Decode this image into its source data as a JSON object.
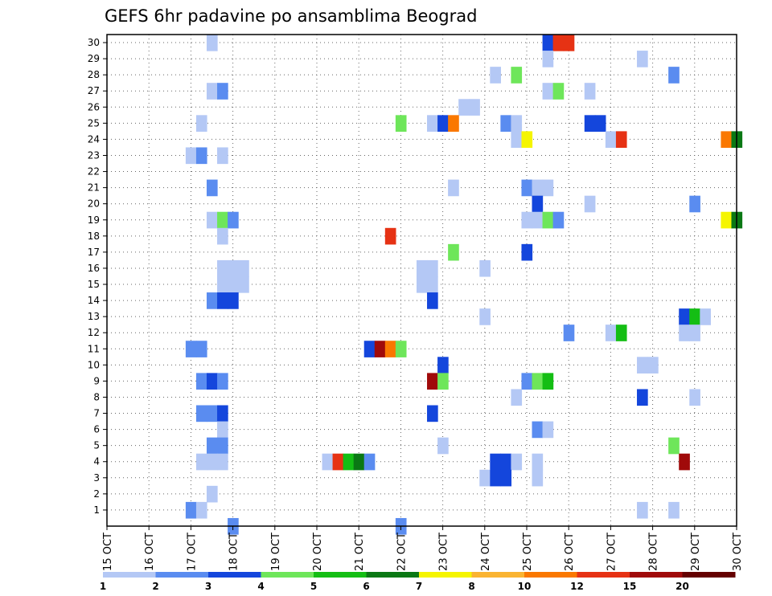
{
  "chart_data": {
    "type": "heatmap",
    "title": "GEFS 6hr padavine po ansamblima Beograd",
    "x_tick_labels": [
      "15 OCT",
      "16 OCT",
      "17 OCT",
      "18 OCT",
      "19 OCT",
      "20 OCT",
      "21 OCT",
      "22 OCT",
      "23 OCT",
      "24 OCT",
      "25 OCT",
      "26 OCT",
      "27 OCT",
      "28 OCT",
      "29 OCT",
      "30 OCT"
    ],
    "y_tick_labels": [
      "1",
      "2",
      "3",
      "4",
      "5",
      "6",
      "7",
      "8",
      "9",
      "10",
      "11",
      "12",
      "13",
      "14",
      "15",
      "16",
      "17",
      "18",
      "19",
      "20",
      "21",
      "22",
      "23",
      "24",
      "25",
      "26",
      "27",
      "28",
      "29",
      "30"
    ],
    "x_range": [
      0,
      60
    ],
    "y_range": [
      0,
      30
    ],
    "legend": {
      "labels": [
        "1",
        "2",
        "3",
        "4",
        "5",
        "6",
        "7",
        "8",
        "10",
        "12",
        "15",
        "20"
      ],
      "colors": [
        "#b4c8f5",
        "#5a8cf0",
        "#1446dc",
        "#6ee65a",
        "#14be14",
        "#0a7814",
        "#f5f500",
        "#fab432",
        "#fa7800",
        "#e63214",
        "#a00a0a",
        "#640000"
      ]
    },
    "cells": [
      [
        10,
        30,
        0
      ],
      [
        42,
        30,
        2
      ],
      [
        43,
        30,
        9
      ],
      [
        44,
        30,
        9
      ],
      [
        42,
        29,
        0
      ],
      [
        51,
        29,
        0
      ],
      [
        37,
        28,
        0
      ],
      [
        39,
        28,
        3
      ],
      [
        54,
        28,
        1
      ],
      [
        10,
        27,
        0
      ],
      [
        11,
        27,
        1
      ],
      [
        42,
        27,
        0
      ],
      [
        43,
        27,
        3
      ],
      [
        46,
        27,
        0
      ],
      [
        34,
        26,
        0
      ],
      [
        35,
        26,
        0
      ],
      [
        9,
        25,
        0
      ],
      [
        28,
        25,
        3
      ],
      [
        31,
        25,
        0
      ],
      [
        32,
        25,
        2
      ],
      [
        33,
        25,
        8
      ],
      [
        38,
        25,
        1
      ],
      [
        39,
        25,
        0
      ],
      [
        46,
        25,
        2
      ],
      [
        47,
        25,
        2
      ],
      [
        39,
        24,
        0
      ],
      [
        40,
        24,
        6
      ],
      [
        48,
        24,
        0
      ],
      [
        49,
        24,
        9
      ],
      [
        59,
        24,
        8
      ],
      [
        60,
        24,
        5
      ],
      [
        8,
        23,
        0
      ],
      [
        9,
        23,
        1
      ],
      [
        11,
        23,
        0
      ],
      [
        10,
        21,
        1
      ],
      [
        33,
        21,
        0
      ],
      [
        40,
        21,
        1
      ],
      [
        41,
        21,
        0
      ],
      [
        42,
        21,
        0
      ],
      [
        41,
        20,
        2
      ],
      [
        46,
        20,
        0
      ],
      [
        56,
        20,
        1
      ],
      [
        10,
        19,
        0
      ],
      [
        11,
        19,
        3
      ],
      [
        12,
        19,
        1
      ],
      [
        40,
        19,
        0
      ],
      [
        41,
        19,
        0
      ],
      [
        42,
        19,
        3
      ],
      [
        43,
        19,
        1
      ],
      [
        59,
        19,
        6
      ],
      [
        60,
        19,
        5
      ],
      [
        11,
        18,
        0
      ],
      [
        27,
        18,
        9
      ],
      [
        33,
        17,
        3
      ],
      [
        40,
        17,
        2
      ],
      [
        11,
        16,
        0
      ],
      [
        12,
        16,
        0
      ],
      [
        13,
        16,
        0
      ],
      [
        30,
        16,
        0
      ],
      [
        31,
        16,
        0
      ],
      [
        36,
        16,
        0
      ],
      [
        11,
        15,
        0
      ],
      [
        12,
        15,
        0
      ],
      [
        13,
        15,
        0
      ],
      [
        30,
        15,
        0
      ],
      [
        31,
        15,
        0
      ],
      [
        10,
        14,
        1
      ],
      [
        11,
        14,
        2
      ],
      [
        12,
        14,
        2
      ],
      [
        31,
        14,
        2
      ],
      [
        36,
        13,
        0
      ],
      [
        55,
        13,
        2
      ],
      [
        56,
        13,
        4
      ],
      [
        57,
        13,
        0
      ],
      [
        44,
        12,
        1
      ],
      [
        48,
        12,
        0
      ],
      [
        49,
        12,
        4
      ],
      [
        55,
        12,
        0
      ],
      [
        56,
        12,
        0
      ],
      [
        8,
        11,
        1
      ],
      [
        9,
        11,
        1
      ],
      [
        25,
        11,
        2
      ],
      [
        26,
        11,
        10
      ],
      [
        27,
        11,
        8
      ],
      [
        28,
        11,
        3
      ],
      [
        32,
        10,
        2
      ],
      [
        51,
        10,
        0
      ],
      [
        52,
        10,
        0
      ],
      [
        9,
        9,
        1
      ],
      [
        10,
        9,
        2
      ],
      [
        11,
        9,
        1
      ],
      [
        31,
        9,
        10
      ],
      [
        32,
        9,
        3
      ],
      [
        40,
        9,
        1
      ],
      [
        41,
        9,
        3
      ],
      [
        42,
        9,
        4
      ],
      [
        39,
        8,
        0
      ],
      [
        51,
        8,
        2
      ],
      [
        56,
        8,
        0
      ],
      [
        9,
        7,
        1
      ],
      [
        10,
        7,
        1
      ],
      [
        11,
        7,
        2
      ],
      [
        31,
        7,
        2
      ],
      [
        11,
        6,
        0
      ],
      [
        41,
        6,
        1
      ],
      [
        42,
        6,
        0
      ],
      [
        10,
        5,
        1
      ],
      [
        11,
        5,
        1
      ],
      [
        32,
        5,
        0
      ],
      [
        54,
        5,
        3
      ],
      [
        9,
        4,
        0
      ],
      [
        10,
        4,
        0
      ],
      [
        11,
        4,
        0
      ],
      [
        21,
        4,
        0
      ],
      [
        22,
        4,
        9
      ],
      [
        23,
        4,
        4
      ],
      [
        24,
        4,
        5
      ],
      [
        25,
        4,
        1
      ],
      [
        37,
        4,
        2
      ],
      [
        38,
        4,
        2
      ],
      [
        39,
        4,
        0
      ],
      [
        41,
        4,
        0
      ],
      [
        55,
        4,
        10
      ],
      [
        36,
        3,
        0
      ],
      [
        37,
        3,
        2
      ],
      [
        38,
        3,
        2
      ],
      [
        41,
        3,
        0
      ],
      [
        10,
        2,
        0
      ],
      [
        8,
        1,
        1
      ],
      [
        9,
        1,
        0
      ],
      [
        51,
        1,
        0
      ],
      [
        54,
        1,
        0
      ],
      [
        12,
        0,
        1
      ],
      [
        28,
        0,
        1
      ]
    ]
  }
}
